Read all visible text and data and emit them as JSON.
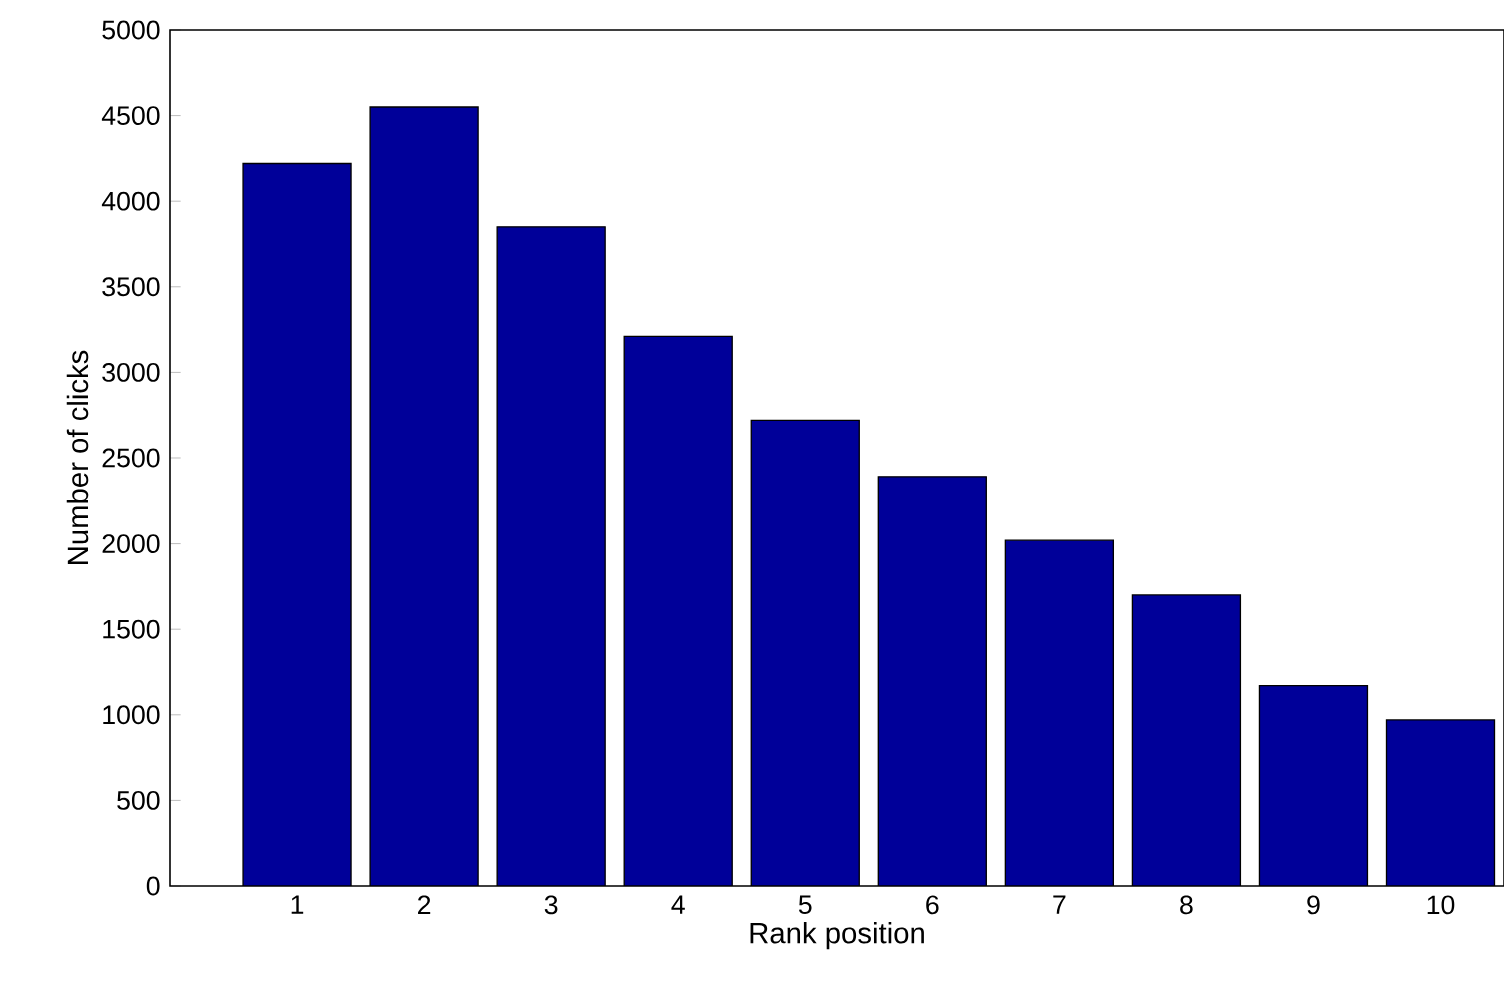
{
  "chart_data": {
    "type": "bar",
    "xlabel": "Rank position",
    "ylabel": "Number of clicks",
    "x": [
      1,
      2,
      3,
      4,
      5,
      6,
      7,
      8,
      9,
      10
    ],
    "values": [
      4220,
      4550,
      3850,
      3210,
      2720,
      2390,
      2020,
      1700,
      1170,
      970
    ],
    "color": "#000099",
    "xlim": [
      0,
      10.5
    ],
    "xticks": [
      1,
      2,
      3,
      4,
      5,
      6,
      7,
      8,
      9,
      10
    ],
    "ylim": [
      0,
      5000
    ],
    "yticks": [
      0,
      500,
      1000,
      1500,
      2000,
      2500,
      3000,
      3500,
      4000,
      4500,
      5000
    ],
    "grid": false
  }
}
